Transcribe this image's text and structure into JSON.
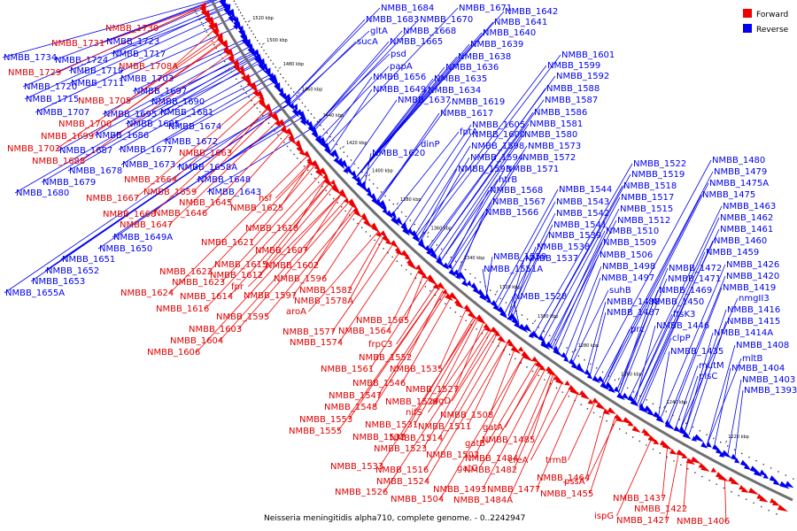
{
  "caption": "Neisseria meningitidis alpha710, complete genome. - 0..2242947",
  "legend": {
    "forward": {
      "label": "Forward",
      "color": "#ee0000"
    },
    "reverse": {
      "label": "Reverse",
      "color": "#0000ee"
    }
  },
  "colors": {
    "forward": "#ee0000",
    "reverse": "#0000ee",
    "backbone": "#707070"
  },
  "ticks": [
    "1520 kbp",
    "1500 kbp",
    "1480 kbp",
    "1460 kbp",
    "1440 kbp",
    "1420 kbp",
    "1400 kbp",
    "1380 kbp",
    "1360 kbp",
    "1340 kbp",
    "1320 kbp",
    "1300 kbp",
    "1280 kbp",
    "1260 kbp",
    "1240 kbp",
    "1220 kbp"
  ],
  "reverse_labels": [
    "NMBB_1684",
    "NMBB_1671",
    "NMBB_1683",
    "NMBB_1670",
    "gltA",
    "NMBB_1668",
    "sucA",
    "NMBB_1665",
    "psd",
    "papA",
    "NMBB_1656",
    "NMBB_1649",
    "NMBB_1637",
    "NMBB_1642",
    "NMBB_1641",
    "NMBB_1640",
    "NMBB_1639",
    "NMBB_1638",
    "NMBB_1636",
    "NMBB_1635",
    "NMBB_1634",
    "NMBB_1601",
    "NMBB_1599",
    "NMBB_1592",
    "NMBB_1588",
    "NMBB_1587",
    "NMBB_1586",
    "NMBB_1581",
    "NMBB_1580",
    "NMBB_1573",
    "NMBB_1572",
    "NMBB_1571",
    "NMBB_1619",
    "NMBB_1617",
    "fptA",
    "NMBB_1605",
    "NMBB_1600",
    "dinP",
    "NMBB_1598",
    "NMBB_1594",
    "NMBB_1593",
    "htrB",
    "NMBB_1568",
    "NMBB_1567",
    "NMBB_1566",
    "NMBB_1620",
    "NMBB_1734",
    "NMBB_1724",
    "NMBB_1723",
    "NMBB_1717",
    "NMBB_1719",
    "NMBB_1720",
    "NMBB_1711",
    "NMBB_1715",
    "NMBB_1703",
    "NMBB_1697",
    "NMBB_1690",
    "NMBB_1707",
    "NMBB_1695",
    "NMBB_1681",
    "NMBB_1685",
    "NMBB_1686",
    "NMBB_1674",
    "NMBB_1672",
    "NMBB_1687",
    "NMBB_1677",
    "NMBB_1673",
    "NMBB_1678",
    "NMBB_1658A",
    "NMBB_1679",
    "NMBB_1648",
    "NMBB_1680",
    "NMBB_1643",
    "NMBB_1649A",
    "NMBB_1650",
    "NMBB_1651",
    "NMBB_1652",
    "NMBB_1653",
    "NMBB_1655A",
    "NMBB_1544",
    "NMBB_1543",
    "NMBB_1542",
    "NMBB_1541",
    "NMBB_1539",
    "NMBB_1538",
    "NMBB_1537",
    "NMBB_1559",
    "NMBB_1551A",
    "NMBB_1528",
    "NMBB_1522",
    "NMBB_1519",
    "NMBB_1518",
    "NMBB_1517",
    "NMBB_1515",
    "NMBB_1512",
    "NMBB_1510",
    "NMBB_1509",
    "NMBB_1506",
    "NMBB_1498",
    "NMBB_1497",
    "suhB",
    "NMBB_1488",
    "NMBB_1487",
    "prc",
    "NMBB_1480",
    "NMBB_1479",
    "NMBB_1475A",
    "NMBB_1475",
    "NMBB_1463",
    "NMBB_1462",
    "NMBB_1461",
    "NMBB_1460",
    "NMBB_1459",
    "NMBB_1426",
    "NMBB_1420",
    "NMBB_1419",
    "nmgII3",
    "NMBB_1416",
    "NMBB_1415",
    "NMBB_1414A",
    "NMBB_1408",
    "mltB",
    "NMBB_1404",
    "NMBB_1403",
    "NMBB_1393",
    "NMBB_1472",
    "NMBB_1471",
    "NMBB_1469",
    "NMBB_1450",
    "ftsK3",
    "NMBB_1446",
    "clpP",
    "NMBB_1435",
    "mutM",
    "plsC"
  ],
  "forward_labels": [
    "NMBB_1730",
    "NMBB_1731",
    "NMBB_1729",
    "NMBB_1708A",
    "NMBB_1705",
    "NMBB_1702",
    "NMBB_1699",
    "NMBB_1700",
    "NMBB_1688",
    "NMBB_1663",
    "NMBB_1664",
    "NMBB_1667",
    "NMBB_1659",
    "NMBB_1660",
    "NMBB_1646",
    "NMBB_1645",
    "NMBB_1647",
    "hsf",
    "NMBB_1625",
    "NMBB_1618",
    "NMBB_1621",
    "NMBB_1607",
    "NMBB_1615",
    "NMBB_1602",
    "NMBB_1622",
    "NMBB_1612",
    "NMBB_1623",
    "NMBB_1596",
    "fpr",
    "NMBB_1614",
    "NMBB_1624",
    "NMBB_1597",
    "NMBB_1616",
    "NMBB_1582",
    "NMBB_1578A",
    "aroA",
    "NMBB_1595",
    "NMBB_1603",
    "NMBB_1565",
    "NMBB_1564",
    "NMBB_1577",
    "NMBB_1604",
    "NMBB_1574",
    "NMBB_1606",
    "frpC3",
    "NMBB_1552",
    "NMBB_1535",
    "NMBB_1561",
    "NMBB_1546",
    "NMBB_1527",
    "NMBB_1547",
    "argD",
    "NMBB_1548",
    "NMBB_1529",
    "nifS",
    "NMBB_1508",
    "NMBB_1553",
    "NMBB_1531",
    "NMBB_1511",
    "gatA",
    "NMBB_1555",
    "NMBB_1532",
    "NMBB_1514",
    "NMBB_1485",
    "NMBB_1523",
    "gatB",
    "NMBB_1502",
    "NMBB_1484",
    "creA",
    "trmB",
    "NMBB_1533",
    "NMBB_1516",
    "gatC",
    "NMBB_1482",
    "NMBB_1524",
    "NMBB_1464",
    "NMBB_1493",
    "NMBB_1477",
    "pssA",
    "NMBB_1526",
    "NMBB_1504",
    "NMBB_1484A",
    "NMBB_1455",
    "NMBB_1437",
    "ispG",
    "NMBB_1422",
    "NMBB_1427",
    "NMBB_1406"
  ]
}
